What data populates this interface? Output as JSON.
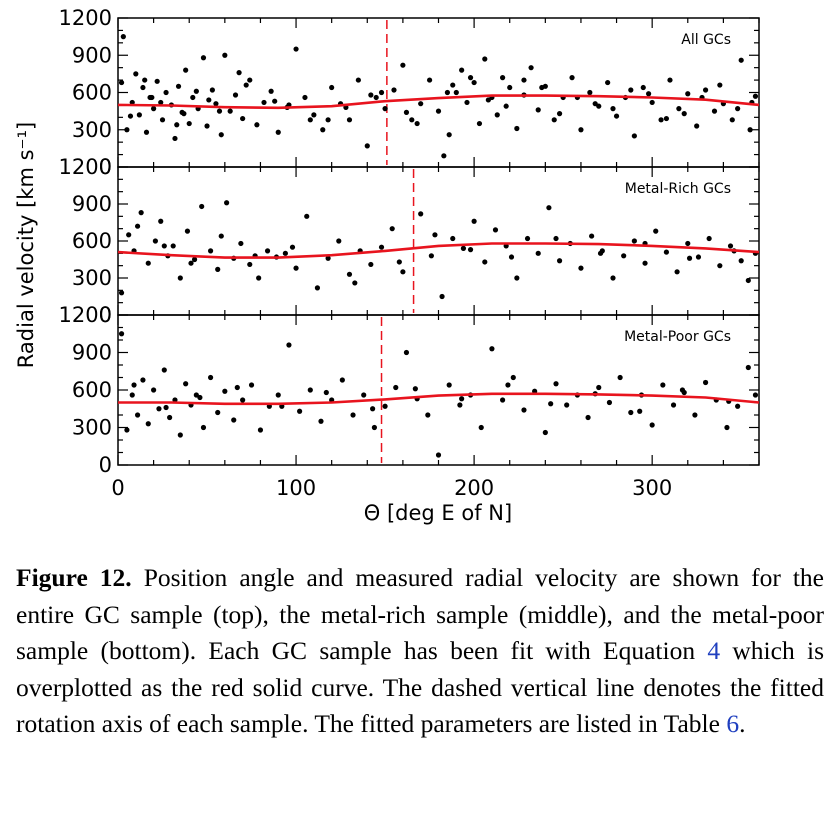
{
  "chart_data": [
    {
      "type": "scatter",
      "panel_label": "All GCs",
      "ylabel": "Radial velocity [km s⁻¹]",
      "xlabel": "Θ [deg E of N]",
      "xlim": [
        0,
        360
      ],
      "ylim": [
        0,
        1200
      ],
      "yticks": [
        0,
        300,
        600,
        900,
        1200
      ],
      "xticks": [
        0,
        100,
        200,
        300
      ],
      "rotation_axis_deg": 151,
      "fit_curve": {
        "x": [
          0,
          30,
          60,
          90,
          120,
          150,
          180,
          210,
          240,
          270,
          300,
          330,
          360
        ],
        "y": [
          500,
          495,
          482,
          477,
          490,
          530,
          555,
          575,
          575,
          570,
          560,
          542,
          500
        ]
      },
      "series": [
        {
          "x": [
            3,
            5,
            8,
            10,
            12,
            14,
            16,
            18,
            20,
            22,
            25,
            27,
            30,
            32,
            34,
            36,
            38,
            40,
            42,
            45,
            48,
            50,
            53,
            55,
            58,
            60,
            63,
            66,
            70,
            74,
            78,
            82,
            86,
            90,
            95,
            100,
            105,
            110,
            115,
            120,
            125,
            130,
            135,
            140,
            145,
            150,
            155,
            160,
            165,
            170,
            175,
            180,
            183,
            186,
            190,
            193,
            196,
            200,
            203,
            206,
            210,
            213,
            216,
            220,
            224,
            228,
            232,
            236,
            240,
            245,
            250,
            255,
            260,
            265,
            270,
            275,
            280,
            285,
            290,
            295,
            300,
            305,
            310,
            315,
            320,
            325,
            330,
            335,
            340,
            345,
            350,
            355,
            358,
            7,
            15,
            24,
            33,
            44,
            57,
            68,
            88,
            108,
            128,
            148,
            168,
            188,
            208,
            228,
            248,
            268,
            288,
            308,
            328,
            348,
            2,
            19,
            37,
            51,
            72,
            96,
            118,
            142,
            162,
            185,
            198,
            218,
            238,
            258,
            278,
            298,
            318,
            338,
            356
          ],
          "y": [
            1050,
            300,
            520,
            750,
            420,
            640,
            280,
            560,
            470,
            690,
            380,
            600,
            500,
            230,
            650,
            440,
            780,
            350,
            560,
            470,
            880,
            330,
            620,
            510,
            260,
            900,
            450,
            580,
            390,
            700,
            340,
            520,
            610,
            280,
            480,
            950,
            560,
            420,
            300,
            640,
            510,
            380,
            700,
            170,
            560,
            470,
            620,
            820,
            380,
            510,
            700,
            450,
            90,
            260,
            600,
            780,
            520,
            680,
            350,
            870,
            560,
            420,
            720,
            640,
            310,
            580,
            800,
            460,
            650,
            380,
            560,
            720,
            300,
            600,
            490,
            680,
            410,
            560,
            250,
            640,
            520,
            380,
            700,
            470,
            590,
            330,
            620,
            450,
            510,
            380,
            860,
            300,
            570,
            410,
            700,
            520,
            340,
            610,
            450,
            760,
            530,
            380,
            480,
            600,
            350,
            660,
            540,
            700,
            430,
            510,
            620,
            390,
            560,
            470,
            680,
            560,
            430,
            540,
            660,
            500,
            380,
            580,
            440,
            600,
            720,
            490,
            640,
            560,
            470,
            590,
            430,
            660,
            520
          ]
        }
      ]
    },
    {
      "type": "scatter",
      "panel_label": "Metal-Rich GCs",
      "xlim": [
        0,
        360
      ],
      "ylim": [
        0,
        1200
      ],
      "yticks": [
        0,
        300,
        600,
        900,
        1200
      ],
      "rotation_axis_deg": 166,
      "fit_curve": {
        "x": [
          0,
          30,
          60,
          90,
          120,
          150,
          180,
          210,
          240,
          270,
          300,
          330,
          360
        ],
        "y": [
          510,
          485,
          465,
          465,
          485,
          520,
          560,
          580,
          580,
          575,
          560,
          540,
          510
        ]
      },
      "series": [
        {
          "x": [
            2,
            6,
            9,
            13,
            17,
            21,
            24,
            28,
            31,
            35,
            39,
            43,
            47,
            52,
            56,
            61,
            65,
            69,
            74,
            79,
            84,
            89,
            94,
            100,
            106,
            112,
            118,
            124,
            130,
            136,
            142,
            148,
            154,
            160,
            170,
            176,
            182,
            188,
            194,
            200,
            206,
            212,
            218,
            224,
            230,
            236,
            242,
            248,
            254,
            260,
            266,
            272,
            278,
            284,
            290,
            296,
            302,
            308,
            314,
            320,
            326,
            332,
            338,
            344,
            350,
            354,
            358,
            11,
            26,
            41,
            58,
            77,
            98,
            133,
            158,
            178,
            198,
            221,
            246,
            271,
            296,
            321,
            346
          ],
          "y": [
            180,
            650,
            520,
            830,
            420,
            600,
            760,
            480,
            560,
            300,
            680,
            450,
            880,
            520,
            370,
            910,
            460,
            580,
            410,
            300,
            520,
            470,
            500,
            380,
            800,
            220,
            460,
            600,
            330,
            520,
            410,
            550,
            700,
            350,
            820,
            480,
            150,
            620,
            540,
            760,
            430,
            690,
            560,
            300,
            620,
            500,
            870,
            440,
            580,
            380,
            640,
            520,
            300,
            480,
            600,
            420,
            680,
            510,
            350,
            580,
            470,
            620,
            400,
            560,
            440,
            280,
            500,
            720,
            560,
            420,
            640,
            480,
            550,
            260,
            430,
            650,
            530,
            470,
            620,
            500,
            580,
            460,
            520
          ]
        }
      ]
    },
    {
      "type": "scatter",
      "panel_label": "Metal-Poor GCs",
      "xlim": [
        0,
        360
      ],
      "ylim": [
        0,
        1200
      ],
      "yticks": [
        0,
        300,
        600,
        900,
        1200
      ],
      "rotation_axis_deg": 148,
      "fit_curve": {
        "x": [
          0,
          30,
          60,
          90,
          120,
          150,
          180,
          210,
          240,
          270,
          300,
          330,
          360
        ],
        "y": [
          500,
          500,
          490,
          490,
          500,
          525,
          555,
          570,
          570,
          565,
          555,
          540,
          500
        ]
      },
      "series": [
        {
          "x": [
            2,
            5,
            8,
            11,
            14,
            17,
            20,
            23,
            26,
            29,
            32,
            35,
            38,
            41,
            44,
            48,
            52,
            56,
            60,
            65,
            70,
            75,
            80,
            85,
            90,
            96,
            102,
            108,
            114,
            120,
            126,
            132,
            138,
            144,
            150,
            156,
            162,
            168,
            174,
            180,
            186,
            192,
            198,
            204,
            210,
            216,
            222,
            228,
            234,
            240,
            246,
            252,
            258,
            264,
            270,
            276,
            282,
            288,
            294,
            300,
            306,
            312,
            318,
            324,
            330,
            336,
            342,
            348,
            354,
            358,
            9,
            27,
            46,
            67,
            92,
            117,
            143,
            167,
            193,
            219,
            243,
            268,
            293,
            317,
            343
          ],
          "y": [
            1050,
            280,
            560,
            400,
            680,
            330,
            600,
            450,
            760,
            380,
            520,
            240,
            650,
            480,
            560,
            300,
            700,
            420,
            590,
            360,
            520,
            640,
            280,
            470,
            560,
            960,
            430,
            600,
            350,
            520,
            680,
            400,
            560,
            300,
            470,
            620,
            900,
            530,
            400,
            80,
            640,
            480,
            560,
            300,
            930,
            520,
            700,
            440,
            590,
            260,
            650,
            480,
            560,
            380,
            620,
            500,
            700,
            420,
            560,
            320,
            640,
            480,
            580,
            400,
            660,
            520,
            300,
            470,
            780,
            560,
            640,
            460,
            540,
            620,
            470,
            580,
            450,
            610,
            530,
            640,
            490,
            570,
            430,
            600,
            510
          ]
        }
      ]
    }
  ],
  "figure_caption": {
    "label": "Figure 12.",
    "text_part1": " Position angle and measured radial velocity are shown for the entire GC sample (top), the metal-rich sample (middle), and the metal-poor sample (bottom). Each GC sample has been fit with Equation ",
    "ref_equation": "4",
    "text_part2": " which is overplotted as the red solid curve. The dashed vertical line denotes the fitted rotation axis of each sample. The fitted parameters are listed in Table ",
    "ref_table": "6",
    "text_part3": "."
  },
  "colors": {
    "points": "#000000",
    "fit_curve": "#e8141e",
    "rotation_axis": "#e8141e"
  }
}
